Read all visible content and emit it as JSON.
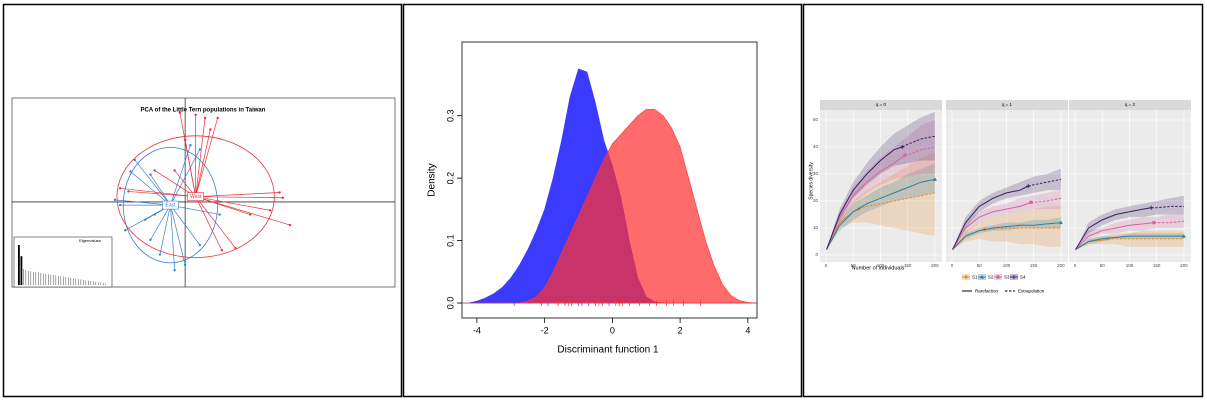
{
  "chart_data": [
    {
      "type": "pca",
      "title": "PCA of the Little Tern populations in Taiwan",
      "xlim": [
        -1.65,
        2.0
      ],
      "ylim": [
        -0.81,
        0.99
      ],
      "groups": [
        {
          "name": "East",
          "color": "#3a7fd0",
          "centroid": [
            -0.14,
            -0.03
          ],
          "ellipse": [
            0.45,
            0.55
          ],
          "points": [
            [
              -0.48,
              0.4
            ],
            [
              -0.52,
              0.29
            ],
            [
              -0.33,
              0.26
            ],
            [
              -0.67,
              0.02
            ],
            [
              -0.62,
              -0.03
            ],
            [
              -0.38,
              -0.17
            ],
            [
              -0.33,
              -0.36
            ],
            [
              -0.24,
              -0.5
            ],
            [
              -0.1,
              -0.65
            ],
            [
              0,
              -0.6
            ],
            [
              0.14,
              -0.41
            ],
            [
              -0.29,
              -0.12
            ],
            [
              0.05,
              0.54
            ],
            [
              0.14,
              0.5
            ],
            [
              0.33,
              -0.12
            ],
            [
              -0.57,
              -0.27
            ]
          ]
        },
        {
          "name": "West",
          "color": "#e8303a",
          "centroid": [
            0.1,
            0.05
          ],
          "ellipse": [
            0.75,
            0.58
          ],
          "points": [
            [
              -0.05,
              0.85
            ],
            [
              0.1,
              0.83
            ],
            [
              0.19,
              0.8
            ],
            [
              0.31,
              0.8
            ],
            [
              0.24,
              0.69
            ],
            [
              0,
              0.59
            ],
            [
              0.9,
              0.09
            ],
            [
              0.93,
              0.04
            ],
            [
              1,
              -0.22
            ],
            [
              0.81,
              -0.08
            ],
            [
              0.62,
              -0.12
            ],
            [
              0.48,
              -0.44
            ],
            [
              0.35,
              -0.46
            ],
            [
              -0.62,
              0.13
            ],
            [
              -0.54,
              0.1
            ],
            [
              -0.1,
              0.3
            ],
            [
              -0.29,
              0.3
            ]
          ]
        }
      ],
      "eigen_title": "Eigenvalues",
      "eigen_ylim": [
        0,
        1.05
      ],
      "eigenvalues": [
        1,
        0.72,
        0.4,
        0.37,
        0.35,
        0.34,
        0.33,
        0.32,
        0.31,
        0.3,
        0.29,
        0.28,
        0.27,
        0.26,
        0.25,
        0.24,
        0.23,
        0.22,
        0.21,
        0.2,
        0.19,
        0.18,
        0.17,
        0.16,
        0.15,
        0.14,
        0.13,
        0.12,
        0.11,
        0.1,
        0.09,
        0.08,
        0.07,
        0.06,
        0.05,
        0.04
      ]
    },
    {
      "type": "density",
      "x_label": "Discriminant function 1",
      "y_label": "Density",
      "xlim": [
        -4.44,
        4.27
      ],
      "ylim": [
        -0.024,
        0.418
      ],
      "xticks": [
        -4,
        -2,
        0,
        2,
        4
      ],
      "yticks": [
        {
          "value": 0,
          "label": "0.0"
        },
        0.1,
        0.2,
        0.3
      ],
      "x": [
        -4.5,
        -4.25,
        -4,
        -3.75,
        -3.5,
        -3.25,
        -3,
        -2.75,
        -2.5,
        -2.25,
        -2,
        -1.75,
        -1.5,
        -1.25,
        -1,
        -0.75,
        -0.5,
        -0.25,
        0,
        0.25,
        0.5,
        0.75,
        1,
        1.25,
        1.5,
        1.75,
        2,
        2.25,
        2.5,
        2.75,
        3,
        3.25,
        3.5,
        3.75,
        4,
        4.25
      ],
      "series": [
        {
          "color": "#3b3bff",
          "values": [
            0,
            0,
            0.003,
            0.008,
            0.015,
            0.025,
            0.04,
            0.06,
            0.085,
            0.115,
            0.15,
            0.2,
            0.26,
            0.33,
            0.375,
            0.37,
            0.32,
            0.26,
            0.22,
            0.17,
            0.1,
            0.04,
            0.01,
            0.002,
            0,
            0,
            0,
            0,
            0,
            0,
            0,
            0,
            0,
            0,
            0,
            0
          ],
          "rug": [
            -2.9,
            -2.1,
            -1.9,
            -1.6,
            -1.4,
            -1.2,
            -1,
            -0.9,
            -0.7,
            -0.5,
            -0.3,
            -0.1,
            0.2
          ]
        },
        {
          "color": "#ff3030",
          "values": [
            0,
            0,
            0,
            0,
            0,
            0,
            0,
            0,
            0.003,
            0.01,
            0.025,
            0.05,
            0.08,
            0.11,
            0.14,
            0.17,
            0.2,
            0.23,
            0.255,
            0.27,
            0.285,
            0.3,
            0.31,
            0.31,
            0.3,
            0.28,
            0.25,
            0.2,
            0.15,
            0.1,
            0.06,
            0.03,
            0.012,
            0.004,
            0.001,
            0
          ],
          "rug": [
            -1.6,
            -1.3,
            -0.4,
            0.1,
            0.3,
            0.5,
            0.8,
            1.1,
            1.3,
            1.6,
            1.8,
            2.1,
            2.6
          ]
        }
      ]
    },
    {
      "type": "rarefaction",
      "x_label": "Number of individuals",
      "y_label": "Species diversity",
      "facets": [
        "q = 0",
        "q = 1",
        "q = 2"
      ],
      "xlim": [
        -11,
        213
      ],
      "ylim": [
        -2.6,
        53.7
      ],
      "xticks": [
        0,
        50,
        100,
        150,
        200
      ],
      "yticks": [
        0,
        10,
        20,
        30,
        40,
        50
      ],
      "x": [
        1,
        25,
        50,
        75,
        100,
        125,
        150,
        175,
        200
      ],
      "line_legend": [
        "Rarefaction",
        "Extrapolation"
      ],
      "series": [
        {
          "name": "S1",
          "color": "#e8892e",
          "observed_x": 60,
          "observed_y": [
            17,
            9.5,
            6
          ],
          "values": [
            [
              2,
              12,
              16,
              18,
              19,
              20,
              21,
              22,
              23
            ],
            [
              2,
              7,
              9,
              9.5,
              10,
              10,
              10,
              10,
              10
            ],
            [
              2,
              5,
              5.5,
              6,
              6,
              6,
              6,
              6,
              6
            ]
          ],
          "lower": [
            [
              2,
              10,
              12,
              12,
              11,
              10,
              9,
              8,
              7
            ],
            [
              2,
              5,
              6,
              5,
              5,
              4,
              4,
              3,
              3
            ],
            [
              2,
              4,
              4,
              4,
              3,
              3,
              3,
              3,
              3
            ]
          ],
          "upper": [
            [
              2,
              14,
              20,
              24,
              27,
              30,
              33,
              36,
              38
            ],
            [
              2,
              9,
              12,
              14,
              15,
              16,
              17,
              18,
              18
            ],
            [
              2,
              6,
              7,
              8,
              8,
              9,
              9,
              9,
              9
            ]
          ]
        },
        {
          "name": "S2",
          "color": "#2f7f9a",
          "observed_x": 200,
          "observed_y": [
            28,
            12,
            7
          ],
          "values": [
            [
              2,
              11,
              16,
              19,
              21,
              23,
              25,
              27,
              28
            ],
            [
              2,
              7,
              9,
              10,
              10.5,
              11,
              11,
              11.5,
              12
            ],
            [
              2,
              5,
              6,
              6.5,
              7,
              7,
              7,
              7,
              7
            ]
          ],
          "lower": [
            [
              2,
              9,
              13,
              16,
              18,
              20,
              21,
              22,
              23
            ],
            [
              2,
              6,
              8,
              9,
              9,
              10,
              10,
              10,
              10
            ],
            [
              2,
              4,
              5,
              6,
              6,
              6,
              6,
              6,
              6
            ]
          ],
          "upper": [
            [
              2,
              13,
              19,
              22,
              25,
              27,
              30,
              32,
              34
            ],
            [
              2,
              8,
              10,
              11,
              12,
              12,
              13,
              13,
              14
            ],
            [
              2,
              6,
              7,
              7,
              8,
              8,
              8,
              8,
              8
            ]
          ]
        },
        {
          "name": "S3",
          "color": "#d4649f",
          "observed_x": 145,
          "observed_y": [
            37,
            19.5,
            12
          ],
          "values": [
            [
              2,
              14,
              22,
              27,
              31,
              34,
              37,
              39,
              40
            ],
            [
              2,
              10,
              14,
              16,
              17,
              18,
              19.5,
              20,
              21
            ],
            [
              2,
              7,
              9,
              10,
              11,
              11.5,
              12,
              12,
              12.5
            ]
          ],
          "lower": [
            [
              2,
              12,
              19,
              23,
              26,
              28,
              29,
              30,
              30
            ],
            [
              2,
              8,
              12,
              14,
              15,
              16,
              17,
              17,
              17
            ],
            [
              2,
              6,
              8,
              8,
              9,
              9,
              10,
              10,
              10
            ]
          ],
          "upper": [
            [
              2,
              16,
              25,
              31,
              36,
              40,
              44,
              48,
              50
            ],
            [
              2,
              12,
              16,
              18,
              19,
              21,
              22,
              23,
              24
            ],
            [
              2,
              9,
              10,
              12,
              13,
              14,
              14,
              15,
              15
            ]
          ]
        },
        {
          "name": "S4",
          "color": "#3b1f66",
          "observed_x": 140,
          "observed_y": [
            40,
            25.5,
            17.5
          ],
          "values": [
            [
              2,
              15,
              24,
              30,
              35,
              39,
              41,
              43,
              44
            ],
            [
              2,
              12,
              18,
              21,
              23,
              24,
              26,
              27,
              28
            ],
            [
              2,
              10,
              13,
              15,
              16,
              17,
              17.5,
              18,
              18
            ]
          ],
          "lower": [
            [
              2,
              13,
              21,
              26,
              30,
              33,
              34,
              35,
              35
            ],
            [
              2,
              10,
              16,
              19,
              21,
              22,
              23,
              24,
              24
            ],
            [
              2,
              8,
              11,
              13,
              14,
              14,
              15,
              15,
              15
            ]
          ],
          "upper": [
            [
              2,
              17,
              27,
              34,
              40,
              45,
              48,
              51,
              53
            ],
            [
              2,
              14,
              20,
              23,
              25,
              27,
              29,
              30,
              32
            ],
            [
              2,
              12,
              15,
              17,
              18,
              19,
              20,
              21,
              22
            ]
          ]
        }
      ]
    }
  ]
}
